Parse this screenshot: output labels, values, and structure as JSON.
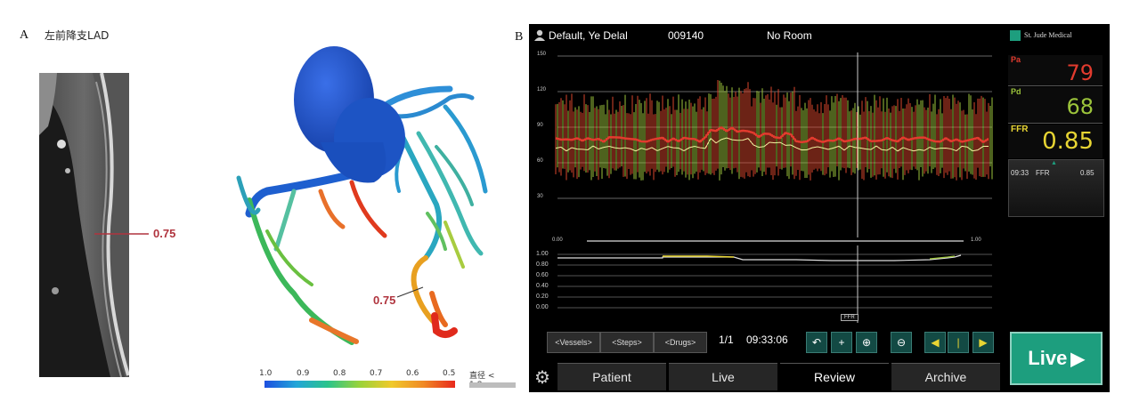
{
  "panel_a": {
    "label": "A",
    "title": "左前降支LAD",
    "ct_value": "0.75",
    "model_value": "0.75",
    "colorbar": {
      "ticks": [
        "1.0",
        "0.9",
        "0.8",
        "0.7",
        "0.6",
        "0.5"
      ],
      "note": "直径 < 1.8mm"
    }
  },
  "panel_b": {
    "label": "B",
    "header": {
      "patient_name": "Default, Ye Delal",
      "patient_id": "009140",
      "room": "No Room",
      "brand": "St. Jude Medical"
    },
    "pressure_axis": [
      "150",
      "120",
      "90",
      "60",
      "30"
    ],
    "ratio_axis": [
      "1.00",
      "0.80",
      "0.60",
      "0.40",
      "0.20",
      "0.00"
    ],
    "ratio_top_left": "0.00",
    "ratio_top_right": "1.00",
    "marker": "FFR",
    "readouts": {
      "pa_label": "Pa",
      "pa_value": "79",
      "pd_label": "Pd",
      "pd_value": "68",
      "ffr_label": "FFR",
      "ffr_value": "0.85",
      "history_time": "09:33",
      "history_label": "FFR",
      "history_value": "0.85"
    },
    "controls": {
      "vessels": "<Vessels>",
      "steps": "<Steps>",
      "drugs": "<Drugs>",
      "page": "1/1",
      "time": "09:33:06"
    },
    "tabs": [
      "Patient",
      "Live",
      "Review",
      "Archive"
    ],
    "live_button": "Live",
    "colors": {
      "pa": "#e23b2e",
      "pd": "#9cc43b",
      "ffr": "#e8d533",
      "accent": "#1d9e7e"
    }
  }
}
